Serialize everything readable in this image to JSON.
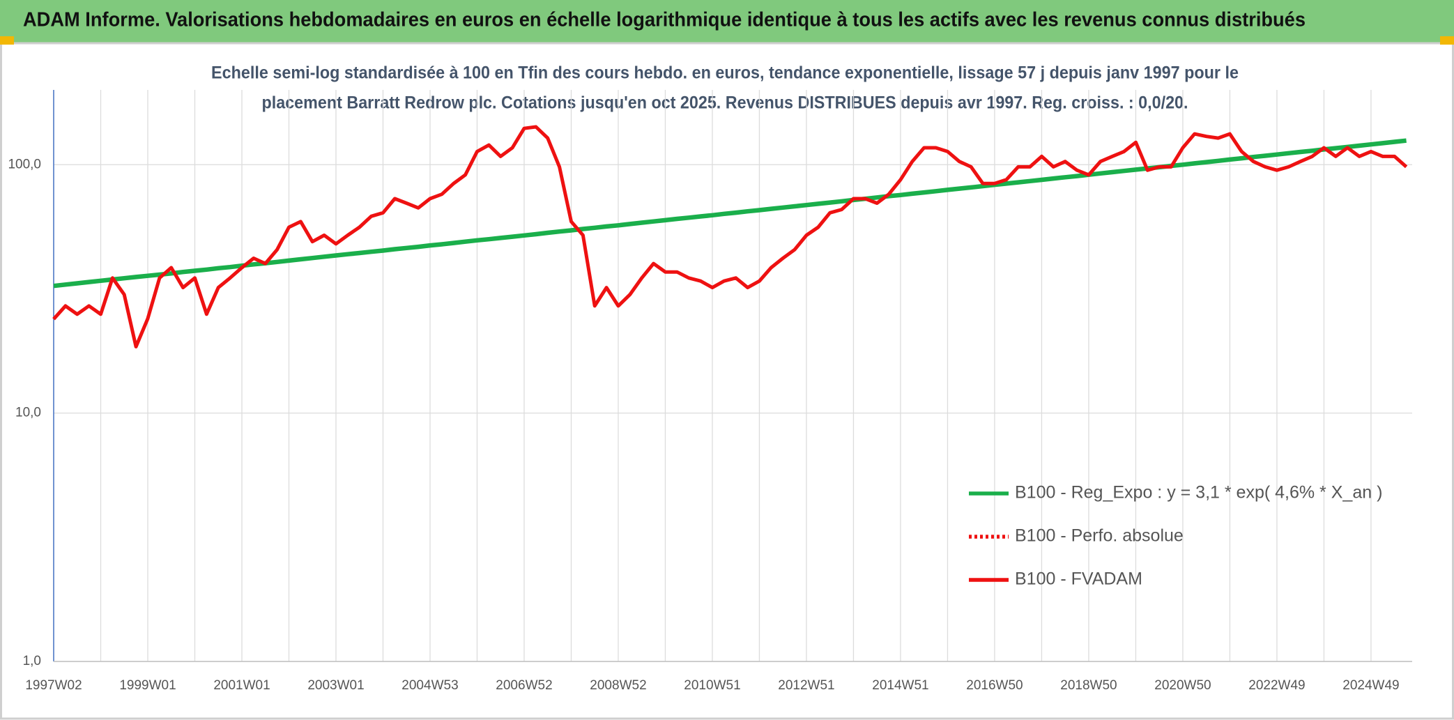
{
  "header": {
    "title": "ADAM Informe. Valorisations hebdomadaires en euros en échelle logarithmique identique à tous les actifs avec les revenus connus distribués"
  },
  "chart_data": {
    "type": "line",
    "title_lines": [
      "Echelle semi-log standardisée à 100 en Tfin des cours hebdo. en euros, tendance exponentielle, lissage 57 j depuis janv 1997 pour le",
      "placement Barratt Redrow plc. Cotations jusqu'en oct 2025. Revenus DISTRIBUES depuis avr 1997. Reg. croiss. : 0,0/20."
    ],
    "log_scale": true,
    "grid": true,
    "legend": "lower right",
    "ylim": [
      1,
      200
    ],
    "yticks": [
      {
        "value": 1,
        "label": "1,0"
      },
      {
        "value": 10,
        "label": "10,0"
      },
      {
        "value": 100,
        "label": "100,0"
      }
    ],
    "categories": [
      "1997W02",
      null,
      null,
      null,
      null,
      null,
      null,
      null,
      "1999W01",
      null,
      null,
      null,
      null,
      null,
      null,
      null,
      "2001W01",
      null,
      null,
      null,
      null,
      null,
      null,
      null,
      "2003W01",
      null,
      null,
      null,
      null,
      null,
      null,
      null,
      "2004W53",
      null,
      null,
      null,
      null,
      null,
      null,
      null,
      "2006W52",
      null,
      null,
      null,
      null,
      null,
      null,
      null,
      "2008W52",
      null,
      null,
      null,
      null,
      null,
      null,
      null,
      "2010W51",
      null,
      null,
      null,
      null,
      null,
      null,
      null,
      "2012W51",
      null,
      null,
      null,
      null,
      null,
      null,
      null,
      "2014W51",
      null,
      null,
      null,
      null,
      null,
      null,
      null,
      "2016W50",
      null,
      null,
      null,
      null,
      null,
      null,
      null,
      "2018W50",
      null,
      null,
      null,
      null,
      null,
      null,
      null,
      "2020W50",
      null,
      null,
      null,
      null,
      null,
      null,
      null,
      "2022W49",
      null,
      null,
      null,
      null,
      null,
      null,
      null,
      "2024W49",
      null,
      null,
      null
    ],
    "series": [
      {
        "name": "B100 - Reg_Expo : y = 3,1 * exp( 4,6% *  X_an )",
        "color": "#1aaf4b",
        "width": 6.5,
        "values": [
          32.5,
          32.9,
          33.3,
          33.7,
          34.1,
          34.5,
          34.9,
          35.3,
          35.7,
          36.1,
          36.5,
          37.0,
          37.4,
          37.8,
          38.3,
          38.7,
          39.2,
          39.7,
          40.1,
          40.6,
          41.1,
          41.6,
          42.1,
          42.6,
          43.1,
          43.6,
          44.1,
          44.6,
          45.1,
          45.7,
          46.2,
          46.7,
          47.3,
          47.8,
          48.4,
          49.0,
          49.6,
          50.1,
          50.7,
          51.3,
          51.9,
          52.5,
          53.2,
          53.8,
          54.4,
          55.1,
          55.7,
          56.4,
          57.0,
          57.7,
          58.4,
          59.1,
          59.8,
          60.5,
          61.2,
          61.9,
          62.6,
          63.4,
          64.1,
          64.9,
          65.6,
          66.4,
          67.2,
          68.0,
          68.8,
          69.6,
          70.4,
          71.2,
          72.1,
          72.9,
          73.8,
          74.7,
          75.5,
          76.4,
          77.3,
          78.2,
          79.2,
          80.1,
          81.0,
          82.0,
          83.0,
          83.9,
          84.9,
          85.9,
          86.9,
          88.0,
          89.0,
          90.0,
          91.1,
          92.2,
          93.3,
          94.4,
          95.5,
          96.6,
          97.7,
          98.9,
          100.0,
          101.2,
          102.4,
          103.6,
          104.9,
          106.1,
          107.4,
          108.6,
          109.9,
          111.2,
          112.5,
          113.8,
          115.2,
          116.5,
          117.9,
          119.3,
          120.7,
          122.1,
          123.6,
          125.0
        ]
      },
      {
        "name": "B100 - FVADAM",
        "color": "#ee1111",
        "width": 5,
        "values": [
          23.9,
          27,
          25,
          27,
          25,
          35,
          30,
          18.5,
          24,
          35,
          38.5,
          32,
          35,
          25,
          32,
          35,
          38.5,
          42,
          40,
          45.5,
          56,
          59,
          49,
          52,
          48,
          52,
          56,
          62,
          64,
          73,
          70,
          67,
          73,
          76,
          84,
          91,
          113,
          120,
          108,
          117,
          140,
          142,
          128,
          98,
          59,
          52,
          27,
          32,
          27,
          30,
          35,
          40,
          37,
          37,
          35,
          34,
          32,
          34,
          35,
          32,
          34,
          38.5,
          42,
          45.5,
          52,
          56,
          64,
          66,
          73,
          73,
          70,
          76,
          87,
          103,
          117,
          117,
          113,
          103,
          98,
          84,
          84,
          87,
          98,
          98,
          108,
          98,
          103,
          95,
          91,
          103,
          108,
          113,
          123,
          95,
          98,
          98,
          117,
          133,
          130,
          128,
          133,
          113,
          103,
          98,
          95,
          98,
          103,
          108,
          117,
          108,
          117,
          108,
          113,
          108,
          108,
          98
        ]
      }
    ],
    "legend_entries": [
      {
        "name": "B100 - Reg_Expo : y = 3,1 * exp( 4,6% *  X_an )",
        "color": "#1aaf4b",
        "style": "solid"
      },
      {
        "name": "B100 - Perfo. absolue",
        "color": "#ee1111",
        "style": "dotted"
      },
      {
        "name": "B100 - FVADAM",
        "color": "#ee1111",
        "style": "solid"
      }
    ]
  }
}
